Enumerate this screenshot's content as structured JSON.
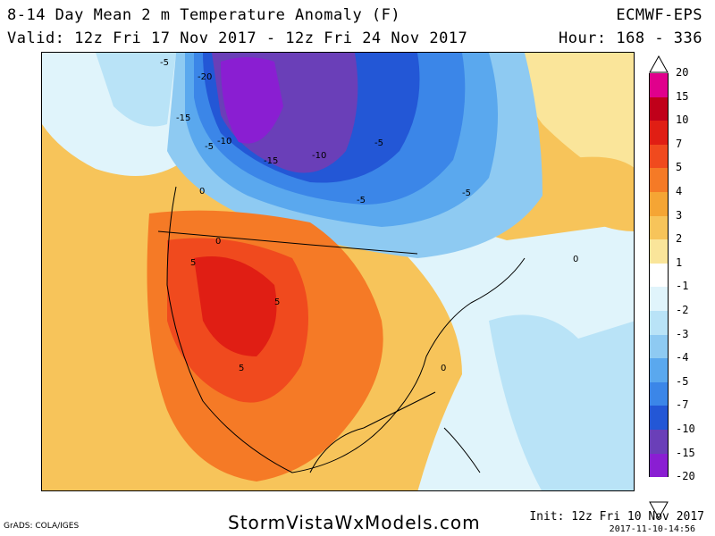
{
  "header": {
    "title": "8-14 Day Mean 2 m Temperature Anomaly (F)",
    "valid": "Valid: 12z Fri 17 Nov 2017 - 12z Fri 24 Nov 2017",
    "model": "ECMWF-EPS",
    "hour": "Hour: 168 - 336"
  },
  "colorbar": {
    "levels": [
      {
        "label": "20",
        "color": "#e0008c"
      },
      {
        "label": "15",
        "color": "#c0001a"
      },
      {
        "label": "10",
        "color": "#e01e14"
      },
      {
        "label": "7",
        "color": "#f04a1e"
      },
      {
        "label": "5",
        "color": "#f57a26"
      },
      {
        "label": "4",
        "color": "#f5a534"
      },
      {
        "label": "3",
        "color": "#f7c45a"
      },
      {
        "label": "2",
        "color": "#fae59a"
      },
      {
        "label": "1",
        "color": "#ffffff"
      },
      {
        "label": "-1",
        "color": "#e0f4fb"
      },
      {
        "label": "-2",
        "color": "#b9e3f7"
      },
      {
        "label": "-3",
        "color": "#8ecaf2"
      },
      {
        "label": "-4",
        "color": "#5aa8ee"
      },
      {
        "label": "-5",
        "color": "#3b86e8"
      },
      {
        "label": "-7",
        "color": "#2357d6"
      },
      {
        "label": "-10",
        "color": "#6a3fb8"
      },
      {
        "label": "-15",
        "color": "#8a1ed2"
      },
      {
        "label": "-20",
        "color": "#ffffff"
      }
    ]
  },
  "map_labels": [
    "-5",
    "-20",
    "-15",
    "-10",
    "-5",
    "-15",
    "-10",
    "-5",
    "-5",
    "-5",
    "0",
    "0",
    "5",
    "5",
    "5",
    "0",
    "0"
  ],
  "footer": {
    "grads": "GrADS: COLA/IGES",
    "site": "StormVistaWxModels.com",
    "init": "Init: 12z Fri 10 Nov 2017",
    "stamp": "2017-11-10-14:56"
  }
}
